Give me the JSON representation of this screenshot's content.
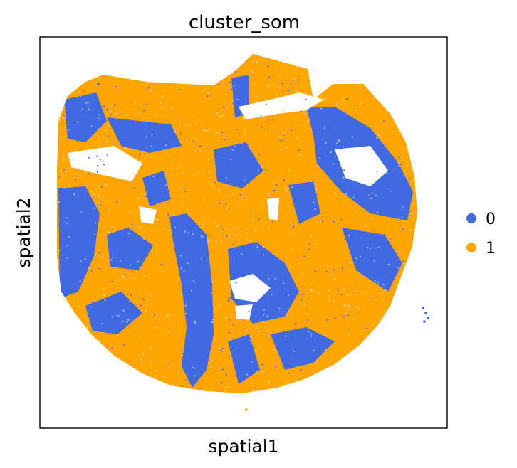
{
  "chart_data": {
    "type": "scatter",
    "title": "cluster_som",
    "xlabel": "spatial1",
    "ylabel": "spatial2",
    "grid": false,
    "ticks_shown": false,
    "legend_position": "right",
    "series": [
      {
        "name": "0",
        "color": "#4169e1"
      },
      {
        "name": "1",
        "color": "#ffa500"
      }
    ]
  }
}
